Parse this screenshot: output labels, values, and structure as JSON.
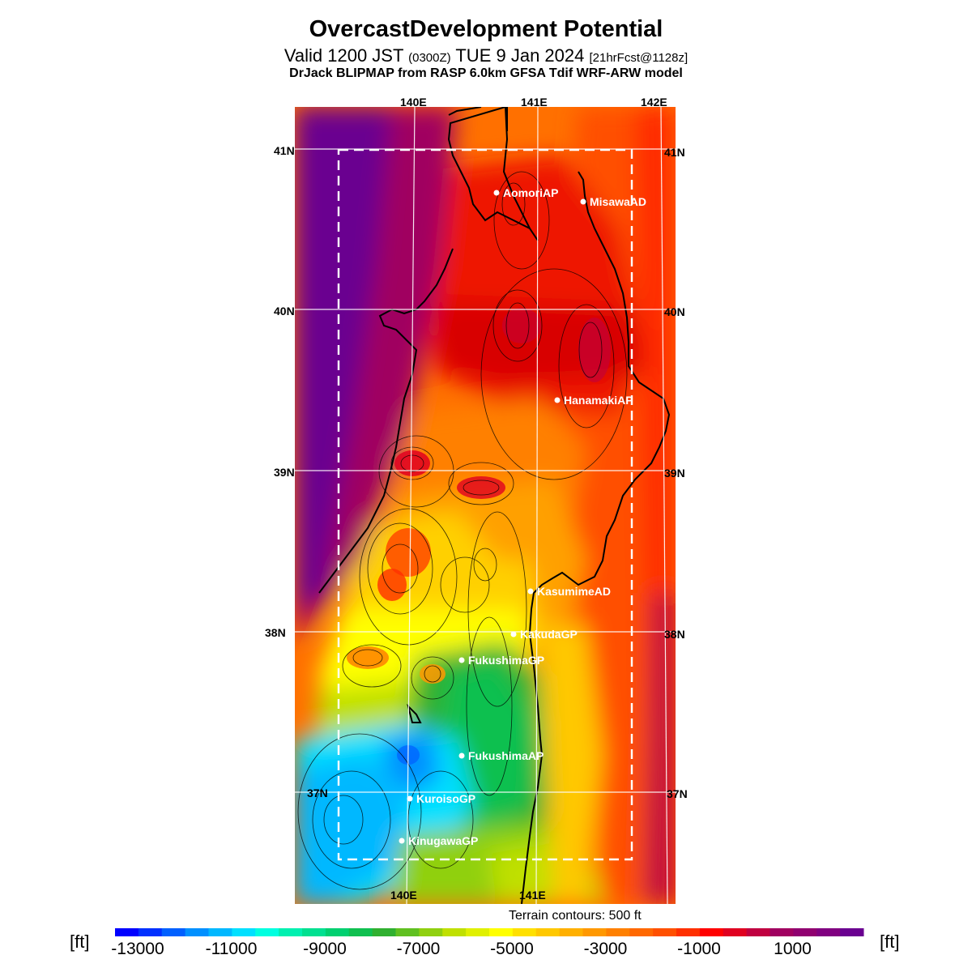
{
  "header": {
    "title": "OvercastDevelopment Potential",
    "valid_prefix": "Valid 1200 JST ",
    "valid_zulu": "(0300Z)",
    "valid_date": " TUE 9 Jan 2024 ",
    "forecast": "[21hrFcst@1128z]",
    "model": "DrJack BLIPMAP from RASP 6.0km GFSA Tdif WRF-ARW model"
  },
  "axes": {
    "top_lon": [
      "140E",
      "141E",
      "142E"
    ],
    "bottom_lon": [
      "140E",
      "141E"
    ],
    "lat_left": [
      "41N",
      "40N",
      "39N",
      "38N",
      "37N"
    ],
    "lat_right": [
      "41N",
      "40N",
      "39N",
      "38N",
      "37N"
    ]
  },
  "stations": [
    {
      "name": "AomoriAP"
    },
    {
      "name": "MisawaAD"
    },
    {
      "name": "HanamakiAP"
    },
    {
      "name": "KasumimeAD"
    },
    {
      "name": "KakudaGP"
    },
    {
      "name": "FukushimaGP"
    },
    {
      "name": "FukushimaAP"
    },
    {
      "name": "KuroisoGP"
    },
    {
      "name": "KinugawaGP"
    }
  ],
  "terrain_note": "Terrain contours: 500 ft",
  "colorbar": {
    "unit": "[ft]",
    "tick_labels": [
      "-13000",
      "-11000",
      "-9000",
      "-7000",
      "-5000",
      "-3000",
      "-1000",
      "1000"
    ],
    "colors": [
      "#0000ff",
      "#0030ff",
      "#0060ff",
      "#0090ff",
      "#00b8ff",
      "#00e0ff",
      "#00ffe0",
      "#00f0b0",
      "#00e090",
      "#00d070",
      "#10c050",
      "#30b030",
      "#60c020",
      "#90d010",
      "#c0e000",
      "#e0f000",
      "#ffff00",
      "#ffe000",
      "#ffc800",
      "#ffb000",
      "#ff9800",
      "#ff8000",
      "#ff6800",
      "#ff5000",
      "#ff3000",
      "#ff0000",
      "#e00020",
      "#c00040",
      "#a00060",
      "#900070",
      "#800080",
      "#6a0090"
    ]
  }
}
